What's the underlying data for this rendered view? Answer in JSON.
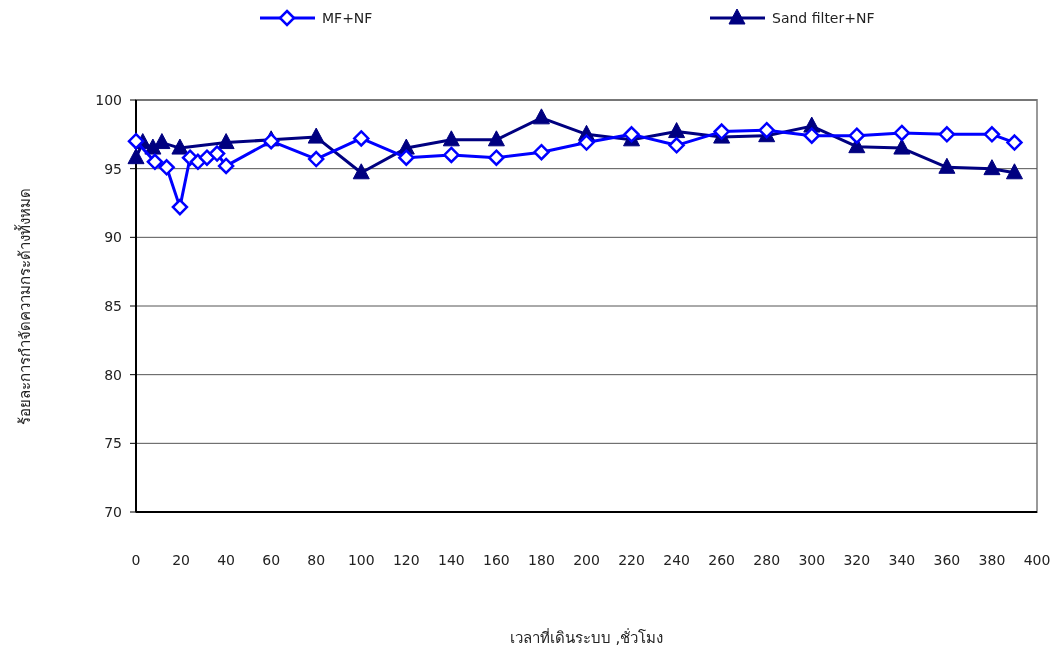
{
  "chart_data": {
    "type": "line",
    "xlabel": "เวลาที่เดินระบบ ,ชั่วโมง",
    "ylabel": "ร้อยละการกำจัดความกระด้างทั้งหมด",
    "xlim": [
      0,
      400
    ],
    "xticks": [
      0,
      20,
      40,
      60,
      80,
      100,
      120,
      140,
      160,
      180,
      200,
      220,
      240,
      260,
      280,
      300,
      320,
      340,
      360,
      380,
      400
    ],
    "ylim": [
      70,
      100
    ],
    "yticks": [
      70,
      75,
      80,
      85,
      90,
      95,
      100
    ],
    "grid": "y",
    "legend": "top",
    "line_style": "solid",
    "series": [
      {
        "name": "MF+NF",
        "color": "#0000ff",
        "marker": "diamond",
        "x": [
          0,
          8.4,
          13.6,
          19.5,
          24,
          27.5,
          31.5,
          36,
          40,
          60,
          80,
          100,
          120,
          140,
          160,
          180,
          200,
          220,
          240,
          260,
          280,
          300,
          320,
          340,
          360,
          380,
          390
        ],
        "values": [
          97.0,
          95.5,
          95.1,
          92.2,
          95.8,
          95.5,
          95.8,
          96.1,
          95.2,
          97.0,
          95.7,
          97.2,
          95.8,
          96.0,
          95.8,
          96.2,
          96.9,
          97.5,
          96.7,
          97.7,
          97.8,
          97.4,
          97.4,
          97.6,
          97.5,
          97.5,
          96.9
        ]
      },
      {
        "name": "Sand filter+NF",
        "color": "#000080",
        "marker": "triangle",
        "x": [
          0,
          3,
          7.5,
          11.5,
          19.5,
          40,
          60,
          80,
          100,
          120,
          140,
          160,
          180,
          200,
          220,
          240,
          260,
          280,
          300,
          320,
          340,
          360,
          380,
          390
        ],
        "values": [
          95.8,
          96.9,
          96.5,
          96.9,
          96.5,
          96.9,
          97.1,
          97.3,
          94.7,
          96.5,
          97.1,
          97.1,
          98.7,
          97.5,
          97.1,
          97.7,
          97.3,
          97.4,
          98.1,
          96.6,
          96.5,
          95.1,
          95.0,
          94.7
        ]
      }
    ]
  }
}
